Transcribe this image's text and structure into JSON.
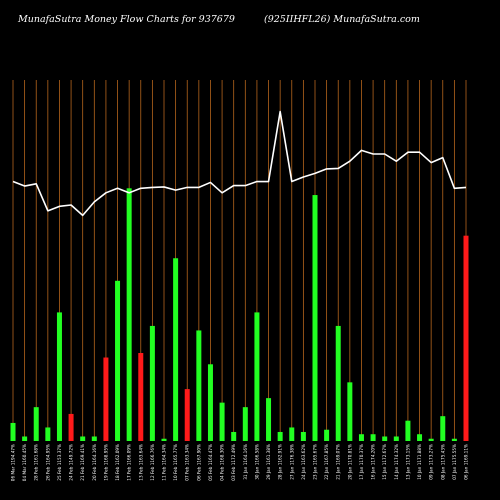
{
  "header": {
    "title": "MunafaSutra  Money Flow  Charts for 937679",
    "symbol": "(925IIHFL26) MunafaSutra.com"
  },
  "colors": {
    "background": "#000000",
    "grid": "#b5651d",
    "up": "#22ff22",
    "down": "#ff1a1a",
    "line": "#ffffff"
  },
  "chart_data": {
    "type": "bar",
    "categories": [
      "06 Mar 1194.47%",
      "04 Mar 1160.45%",
      "28 Feb 1161.68%",
      "26 Feb 1164.95%",
      "25 Feb 1153.37%",
      "24 Feb 1149.72%",
      "21 Feb 1169.41%",
      "20 Feb 1164.16%",
      "19 Feb 1168.95%",
      "18 Feb 1162.09%",
      "17 Feb 1166.09%",
      "13 Feb 1163.64%",
      "12 Feb 1166.76%",
      "11 Feb 1164.34%",
      "10 Feb 1165.77%",
      "07 Feb 1163.34%",
      "06 Feb 1167.90%",
      "05 Feb 1164.47%",
      "04 Feb 1168.30%",
      "03 Feb 1172.49%",
      "31 Jan 1164.16%",
      "30 Jan 1166.58%",
      "29 Jan 1161.38%",
      "28 Jan 1162.91%",
      "27 Jan 1176.38%",
      "24 Jan 1163.62%",
      "23 Jan 1165.67%",
      "22 Jan 1167.85%",
      "21 Jan 1169.07%",
      "20 Jan 1170.81%",
      "17 Jan 1170.37%",
      "16 Jan 1174.20%",
      "15 Jan 1172.67%",
      "14 Jan 1174.32%",
      "13 Jan 1173.15%",
      "10 Jan 1171.88%",
      "09 Jan 1173.27%",
      "08 Jan 1175.43%",
      "07 Jan 1175.55%",
      "06 Jan 1169.11%"
    ],
    "values": [
      4,
      1,
      7.5,
      3,
      28.5,
      6,
      1,
      1,
      18.5,
      35.5,
      56,
      19.5,
      25.5,
      0.5,
      40.5,
      11.5,
      24.5,
      17,
      8.5,
      2,
      7.5,
      28.5,
      9.5,
      2,
      3,
      2,
      54.5,
      2.5,
      25.5,
      13,
      1.5,
      1.5,
      1,
      1,
      4.5,
      1.5,
      0.5,
      5.5,
      0.5,
      45.5
    ],
    "directions": [
      "up",
      "up",
      "up",
      "up",
      "up",
      "down",
      "up",
      "up",
      "down",
      "up",
      "up",
      "down",
      "up",
      "up",
      "up",
      "down",
      "up",
      "up",
      "up",
      "up",
      "up",
      "up",
      "up",
      "up",
      "up",
      "up",
      "up",
      "up",
      "up",
      "up",
      "up",
      "up",
      "up",
      "up",
      "up",
      "up",
      "up",
      "up",
      "up",
      "down"
    ],
    "line": [
      57.5,
      56.5,
      57,
      51,
      52,
      52.3,
      50,
      53,
      55,
      56,
      55,
      56,
      56.2,
      56.3,
      55.6,
      56.2,
      56.2,
      57.3,
      55,
      56.6,
      56.6,
      57.5,
      57.5,
      73,
      57.5,
      58.5,
      59.3,
      60.3,
      60.4,
      62,
      64.4,
      63.6,
      63.6,
      62,
      64,
      64,
      61.7,
      62.8,
      56,
      56.2
    ],
    "ylim": [
      0,
      80
    ],
    "grid": true
  }
}
